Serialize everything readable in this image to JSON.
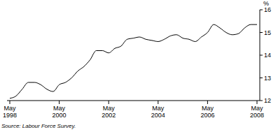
{
  "chart_data": {
    "type": "line",
    "y_label": "%",
    "source": "Source: Labour Force Survey.",
    "categories": [
      "May 1998",
      null,
      null,
      null,
      null,
      null,
      null,
      null,
      "May 2000",
      null,
      null,
      null,
      null,
      null,
      null,
      null,
      "May 2002",
      null,
      null,
      null,
      null,
      null,
      null,
      null,
      "May 2004",
      null,
      null,
      null,
      null,
      null,
      null,
      null,
      "May 2006",
      null,
      null,
      null,
      null,
      null,
      null,
      null,
      "May 2008"
    ],
    "values": [
      12.1,
      12.2,
      12.5,
      12.8,
      12.8,
      12.7,
      12.5,
      12.4,
      12.7,
      12.8,
      13.0,
      13.3,
      13.5,
      13.8,
      14.2,
      14.2,
      14.1,
      14.3,
      14.4,
      14.7,
      14.75,
      14.8,
      14.7,
      14.65,
      14.6,
      14.7,
      14.85,
      14.9,
      14.75,
      14.7,
      14.6,
      14.8,
      15.0,
      15.35,
      15.2,
      15.0,
      14.9,
      14.95,
      15.2,
      15.35,
      15.35
    ],
    "color": "#000000",
    "ylim": [
      12,
      16
    ],
    "yticks": [
      12,
      13,
      14,
      15,
      16
    ],
    "grid": false
  }
}
